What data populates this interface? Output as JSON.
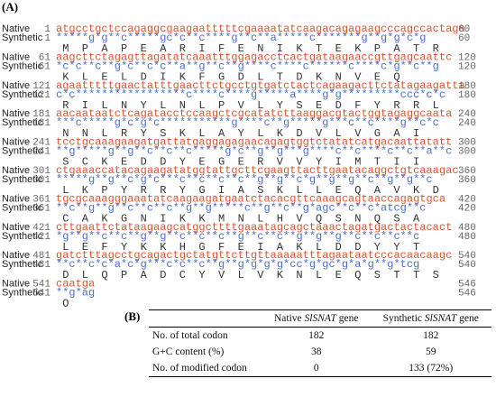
{
  "panel_a": {
    "label": "(A)",
    "row_labels": {
      "native": "Native",
      "synthetic": "Synthetic"
    },
    "blocks": [
      {
        "start": "1",
        "end": "60",
        "native": "atgcctgctccagaggcgaagaatttttcgaaaatatcaagacagagaagcccagccactaga",
        "synthetic": "*****g*g**c*****gc*c**c****g**c**a*****c*******g**g*g*c*g",
        "protein": "MPAPEARIFENIKTEKPATR"
      },
      {
        "start": "61",
        "end": "120",
        "native": "aagcttctagagttagatatcaaatttggagacctcactgataagaaccgttgagcaattc",
        "synthetic": "*c*c**c**g*c**c*c**a**g**c**g****c****c******c****c*g**c**g",
        "protein": "KLELDIKFGDLTDKNVEQ"
      },
      {
        "start": "121",
        "end": "180",
        "native": "agaatttttgaactatttgaacttctgcctgtgatctactcagaagacttctatagaagatta",
        "synthetic": "c*c*****************c****c****g*****a****g*g*********ccc*c*c",
        "protein": "RILNYLNLPVLYSEDFYRRL"
      },
      {
        "start": "181",
        "end": "240",
        "native": "aacaataatctcagatacctccaagctcgcatatcttaaggacgtactggtagaggcaata",
        "synthetic": "***c*****g*c*g*c***********g****c**g*****g***c**c****g**c*c",
        "protein": "NNLRYSKLAYLKDVLVGAI"
      },
      {
        "start": "241",
        "end": "300",
        "native": "tcctgcaaagaagatgattatgaggagagaacagagtggtctatatcatgacaattatatt",
        "synthetic": "**g*****g**g**c**c**c*****g*c**g**g***g****c**c****c**c**a**c",
        "protein": "SCKEDDYEGERVVYIMTII"
      },
      {
        "start": "301",
        "end": "360",
        "native": "ctgaaaccatacagaagatatggtattgcttcgaagttacttgaatacaggctgtcaaagac",
        "synthetic": "*****g**g**c*g*c***c**c**c**c**g**g**c*g**g**g**c**g**g**c",
        "protein": "LKPYRRYGIASKLLEQAVKD"
      },
      {
        "start": "361",
        "end": "420",
        "native": "tgcgcaaagggaaatatcaagaagatgaatctacacgttcaaagcagtaaccagagtgca",
        "synthetic": "**c**g**g**c**c**c**g**g*****c**g**c**g*agc**c**c*atcg**c",
        "protein": "CAKGNIKKMNLHVQSNQSA"
      },
      {
        "start": "421",
        "end": "480",
        "native": "cttgaattctataagaagcatggcttttgaaatagcagctaaactagatgactactacact",
        "synthetic": "*g**g**c**c**g**g**c**c**c**g**c**c**g**g**g**c**c**c**c",
        "protein": "LEFYKKHGFEIAKLDDYYT"
      },
      {
        "start": "481",
        "end": "540",
        "native": "gatctttagcctgcagactgctatgttcttgttaaaaatttagaataatcccacaacaagc",
        "synthetic": "**c**c*c*a*c*g***c*c**c**g**g*g*g*g*cc*g*gc*g*a*g**g*tcg",
        "protein": "DLQPADCYVLVKNLEQSTTS"
      },
      {
        "start": "541",
        "end": "546",
        "native": "caatga",
        "synthetic": "**g*ag",
        "protein": "Q"
      }
    ]
  },
  "panel_b": {
    "label": "(B)",
    "header": [
      {
        "prefix": "Native",
        "gene": "SlSNAT",
        "suffix": "gene"
      },
      {
        "prefix": "Synthetic",
        "gene": "SlSNAT",
        "suffix": "gene"
      }
    ],
    "rows": [
      [
        "No. of total codon",
        "182",
        "182"
      ],
      [
        "G+C  content  (%)",
        "38",
        "59"
      ],
      [
        "No. of modified codon",
        "0",
        "133 (72%)"
      ]
    ]
  }
}
